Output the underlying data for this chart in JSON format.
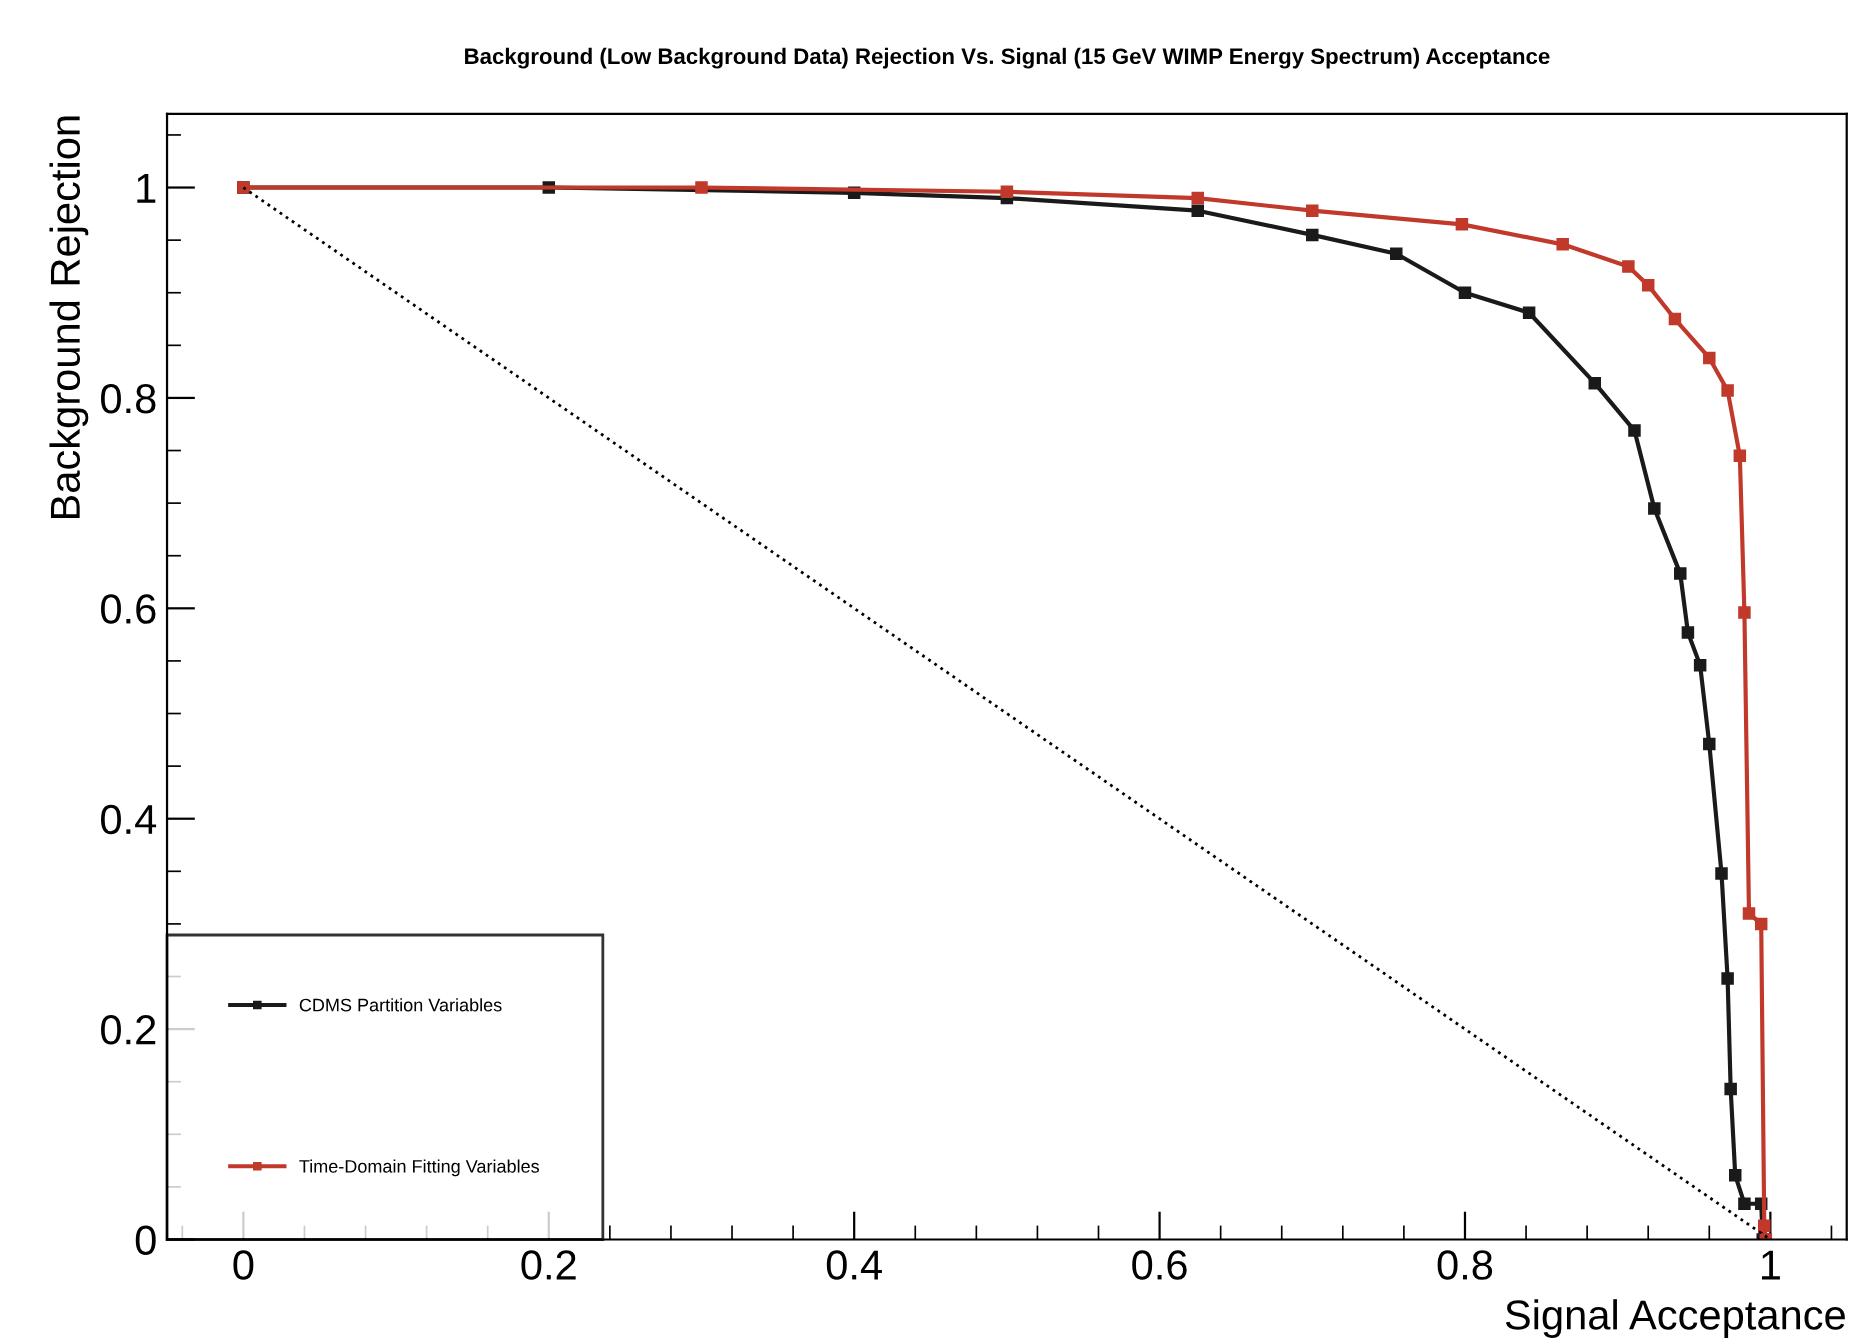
{
  "chart_data": {
    "type": "line",
    "title": "Background (Low Background Data) Rejection Vs. Signal (15 GeV WIMP Energy Spectrum) Acceptance",
    "xlabel": "Signal Acceptance",
    "ylabel": "Background Rejection",
    "xlim": [
      -0.05,
      1.05
    ],
    "ylim": [
      0,
      1.07
    ],
    "xticks": [
      {
        "value": 0,
        "label": "0"
      },
      0.2,
      0.4,
      0.6,
      0.8,
      {
        "value": 1,
        "label": "1"
      }
    ],
    "yticks": [
      {
        "value": 0,
        "label": "0"
      },
      0.2,
      0.4,
      0.6,
      0.8,
      {
        "value": 1,
        "label": "1"
      }
    ],
    "grid": false,
    "legend": "bottom left",
    "series": [
      {
        "name": "CDMS Partition Variables",
        "color": "#1a1a1a",
        "marker": "square",
        "line_style": "solid",
        "x": [
          0,
          0.2,
          0.4,
          0.5,
          0.625,
          0.7,
          0.755,
          0.8,
          0.842,
          0.885,
          0.911,
          0.924,
          0.941,
          0.946,
          0.954,
          0.96,
          0.968,
          0.972,
          0.974,
          0.977,
          0.983,
          0.994,
          0.995
        ],
        "values": [
          1,
          1,
          0.995,
          0.99,
          0.978,
          0.955,
          0.937,
          0.9,
          0.881,
          0.814,
          0.769,
          0.695,
          0.633,
          0.577,
          0.546,
          0.471,
          0.348,
          0.248,
          0.143,
          0.061,
          0.034,
          0.034,
          0
        ]
      },
      {
        "name": "Time-Domain Fitting Variables",
        "color": "#c0392b",
        "marker": "square",
        "line_style": "solid",
        "x": [
          0,
          0.3,
          0.5,
          0.625,
          0.7,
          0.798,
          0.864,
          0.907,
          0.92,
          0.9375,
          0.96,
          0.972,
          0.98,
          0.983,
          0.986,
          0.994,
          0.996,
          0.997
        ],
        "values": [
          1,
          1,
          0.996,
          0.99,
          0.978,
          0.965,
          0.946,
          0.925,
          0.907,
          0.875,
          0.838,
          0.807,
          0.745,
          0.596,
          0.31,
          0.3,
          0.013,
          0
        ]
      },
      {
        "color": "#000000",
        "marker": "none",
        "line_style": "dotted",
        "x": [
          0,
          1
        ],
        "values": [
          1,
          0
        ]
      }
    ]
  }
}
